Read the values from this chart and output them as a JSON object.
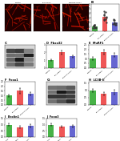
{
  "panel_B": {
    "title": "B",
    "groups": [
      "Control",
      "LVH-siRNA",
      "Exercise-siRNA"
    ],
    "values": [
      1.0,
      3.2,
      2.0
    ],
    "errors": [
      0.4,
      0.9,
      0.5
    ],
    "colors": [
      "#33aa33",
      "#ee4444",
      "#5555cc"
    ],
    "ylim": [
      0,
      6
    ]
  },
  "panel_D": {
    "title": "D",
    "subtitle": "Fbxo32",
    "groups": [
      "Control",
      "LVH-siRNA",
      "Exercise-siRNA"
    ],
    "values": [
      1.0,
      2.0,
      1.5
    ],
    "errors": [
      0.12,
      0.22,
      0.18
    ],
    "colors": [
      "#33aa33",
      "#ee4444",
      "#5555cc"
    ],
    "ylim": [
      0,
      3.0
    ]
  },
  "panel_E": {
    "title": "E",
    "subtitle": "MuRF1",
    "groups": [
      "Control",
      "LVH-siRNA",
      "Exercise-siRNA"
    ],
    "values": [
      1.0,
      1.7,
      1.4
    ],
    "errors": [
      0.15,
      0.28,
      0.22
    ],
    "colors": [
      "#33aa33",
      "#ee4444",
      "#5555cc"
    ],
    "ylim": [
      0,
      2.5
    ]
  },
  "panel_F": {
    "title": "F",
    "subtitle": "Foxo1",
    "groups": [
      "Control",
      "LVH-siRNA",
      "Exercise-siRNA"
    ],
    "values": [
      1.0,
      1.5,
      1.2
    ],
    "errors": [
      0.12,
      0.28,
      0.18
    ],
    "colors": [
      "#33aa33",
      "#ee4444",
      "#5555cc"
    ],
    "ylim": [
      0,
      2.5
    ]
  },
  "panel_H": {
    "title": "H",
    "subtitle": "LC3B-II",
    "groups": [
      "Control",
      "LVH-siRNA",
      "Exercise-siRNA"
    ],
    "values": [
      1.0,
      0.75,
      0.88
    ],
    "errors": [
      0.12,
      0.1,
      0.15
    ],
    "colors": [
      "#33aa33",
      "#ee4444",
      "#5555cc"
    ],
    "ylim": [
      0,
      1.6
    ]
  },
  "panel_I": {
    "title": "I",
    "subtitle": "Beclin1",
    "groups": [
      "Control",
      "LVH-siRNA",
      "Exercise-siRNA"
    ],
    "values": [
      1.0,
      0.78,
      0.88
    ],
    "errors": [
      0.1,
      0.1,
      0.13
    ],
    "colors": [
      "#33aa33",
      "#ee4444",
      "#5555cc"
    ],
    "ylim": [
      0,
      1.5
    ]
  },
  "panel_J": {
    "title": "J",
    "subtitle": "Foxo3",
    "groups": [
      "Control",
      "LVH-siRNA",
      "Exercise-siRNA"
    ],
    "values": [
      1.0,
      0.82,
      0.88
    ],
    "errors": [
      0.09,
      0.08,
      0.1
    ],
    "colors": [
      "#33aa33",
      "#ee4444",
      "#5555cc"
    ],
    "ylim": [
      0,
      1.5
    ]
  },
  "micro_labels": [
    "Control",
    "LVH-siRNA",
    "Exercise-siRNA"
  ],
  "wb_rows": 4,
  "bg_color": "#f5f5f5"
}
